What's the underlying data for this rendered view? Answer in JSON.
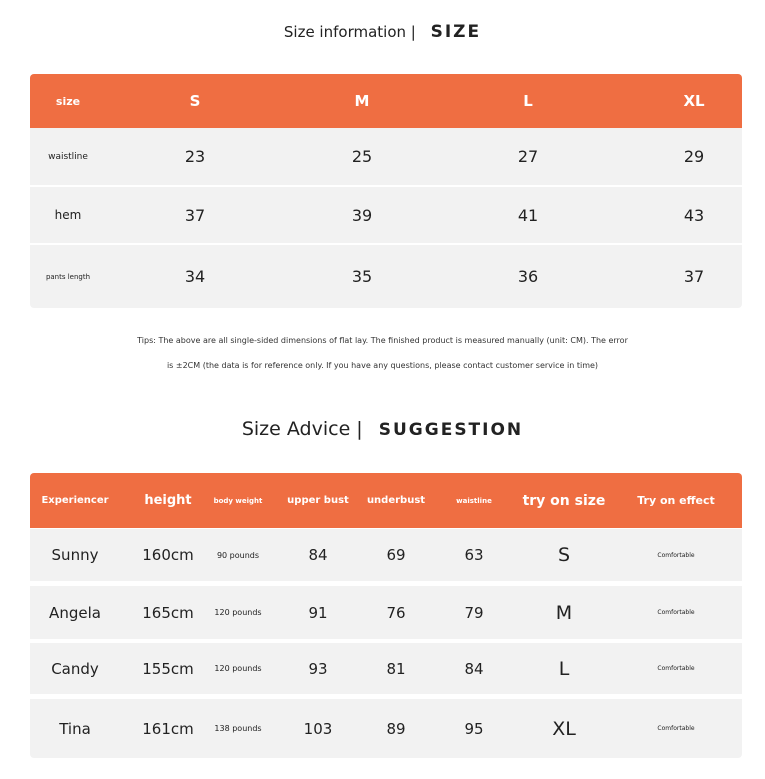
{
  "size_info": {
    "title_cn": "Size information |",
    "title_en": "SIZE",
    "header": [
      "size",
      "S",
      "M",
      "L",
      "XL"
    ],
    "rows": [
      {
        "label": "waistline",
        "values": [
          "23",
          "25",
          "27",
          "29"
        ]
      },
      {
        "label": "hem",
        "values": [
          "37",
          "39",
          "41",
          "43"
        ]
      },
      {
        "label": "pants length",
        "values": [
          "34",
          "35",
          "36",
          "37"
        ]
      }
    ],
    "tips_line1": "Tips: The above are all single-sided dimensions of flat lay. The finished product is measured manually (unit: CM). The error",
    "tips_line2": "is ±2CM (the data is for reference only. If you have any questions, please contact customer service in time)"
  },
  "size_advice": {
    "title_cn": "Size Advice |",
    "title_en": "SUGGESTION",
    "header": [
      "Experiencer",
      "height",
      "body weight",
      "upper bust",
      "underbust",
      "waistline",
      "try on size",
      "Try on effect"
    ],
    "rows": [
      [
        "Sunny",
        "160cm",
        "90 pounds",
        "84",
        "69",
        "63",
        "S",
        "Comfortable"
      ],
      [
        "Angela",
        "165cm",
        "120 pounds",
        "91",
        "76",
        "79",
        "M",
        "Comfortable"
      ],
      [
        "Candy",
        "155cm",
        "120 pounds",
        "93",
        "81",
        "84",
        "L",
        "Comfortable"
      ],
      [
        "Tina",
        "161cm",
        "138 pounds",
        "103",
        "89",
        "95",
        "XL",
        "Comfortable"
      ]
    ]
  },
  "colors": {
    "accent": "#EF6E42",
    "row_bg": "#f2f2f2"
  }
}
